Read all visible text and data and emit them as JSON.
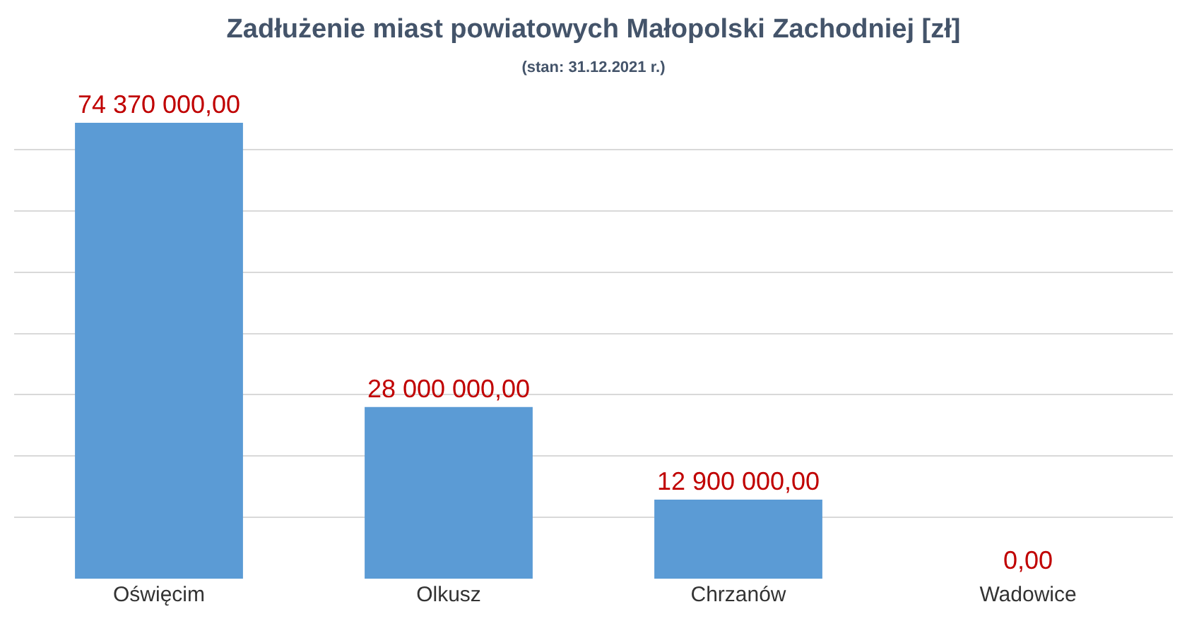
{
  "chart_data": {
    "type": "bar",
    "title": "Zadłużenie miast powiatowych Małopolski Zachodniej [zł]",
    "subtitle": "(stan: 31.12.2021 r.)",
    "categories": [
      "Oświęcim",
      "Olkusz",
      "Chrzanów",
      "Wadowice"
    ],
    "values": [
      74370000,
      28000000,
      12900000,
      0
    ],
    "value_labels": [
      "74 370 000,00",
      "28 000 000,00",
      "12 900 000,00",
      "0,00"
    ],
    "color": "#5b9bd5",
    "tick_labels": "x",
    "grid": "y",
    "legend": false
  }
}
